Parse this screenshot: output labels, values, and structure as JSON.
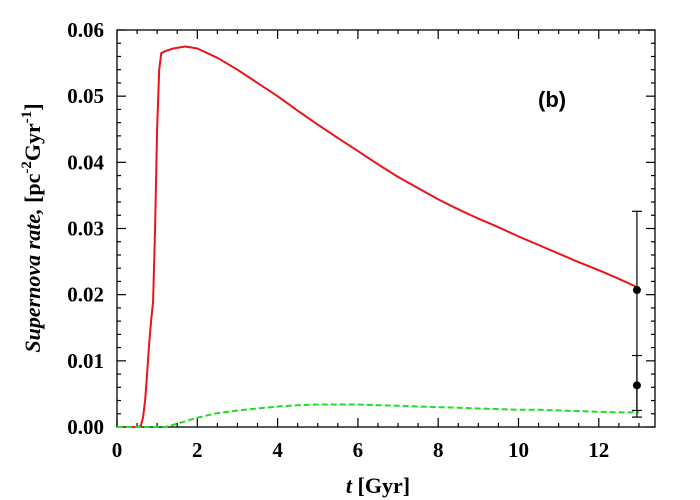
{
  "chart_data": {
    "type": "line",
    "panel_label": "(b)",
    "xlabel": {
      "italic": "t",
      "rest": " [Gyr]"
    },
    "ylabel": {
      "italic": "Supernova rate,",
      "rest": " [pc",
      "sup1": "-2",
      "mid": "Gyr",
      "sup2": "-1",
      "end": "]"
    },
    "xlim": [
      0,
      13.4
    ],
    "ylim": [
      0,
      0.06
    ],
    "xticks": [
      0,
      2,
      4,
      6,
      8,
      10,
      12
    ],
    "xtick_labels": [
      "0",
      "2",
      "4",
      "6",
      "8",
      "10",
      "12"
    ],
    "yticks": [
      0,
      0.01,
      0.02,
      0.03,
      0.04,
      0.05,
      0.06
    ],
    "ytick_labels": [
      "0.00",
      "0.01",
      "0.02",
      "0.03",
      "0.04",
      "0.05",
      "0.06"
    ],
    "grid": false,
    "series": [
      {
        "color": "#e8141a",
        "style": "solid",
        "x": [
          0,
          0.55,
          0.6,
          0.65,
          0.7,
          0.75,
          0.8,
          0.85,
          0.9,
          0.95,
          1.0,
          1.05,
          1.1,
          1.2,
          1.4,
          1.7,
          2.0,
          2.5,
          3.0,
          3.5,
          4.0,
          4.5,
          5.0,
          5.5,
          6.0,
          6.5,
          7.0,
          7.5,
          8.0,
          8.5,
          9.0,
          9.5,
          10.0,
          10.5,
          11.0,
          11.5,
          12.0,
          12.5,
          13.0
        ],
        "y": [
          0,
          0,
          0.0003,
          0.0015,
          0.004,
          0.008,
          0.0125,
          0.016,
          0.019,
          0.03,
          0.045,
          0.054,
          0.0565,
          0.0568,
          0.0572,
          0.0575,
          0.0572,
          0.0558,
          0.054,
          0.052,
          0.05,
          0.0478,
          0.0457,
          0.0437,
          0.0417,
          0.0397,
          0.0378,
          0.0361,
          0.0344,
          0.0329,
          0.0315,
          0.0302,
          0.0288,
          0.0275,
          0.0262,
          0.0249,
          0.0237,
          0.0224,
          0.021
        ]
      },
      {
        "color": "#22dd22",
        "style": "dashed",
        "x": [
          0,
          1.2,
          1.5,
          2.0,
          2.5,
          3.0,
          3.5,
          4.0,
          4.5,
          5.0,
          5.5,
          6.0,
          6.5,
          7.0,
          7.5,
          8.0,
          8.5,
          9.0,
          9.5,
          10.0,
          10.5,
          11.0,
          11.5,
          12.0,
          12.5,
          13.0
        ],
        "y": [
          0,
          0,
          0.0005,
          0.0014,
          0.0021,
          0.0025,
          0.0028,
          0.0031,
          0.0033,
          0.0034,
          0.0034,
          0.0034,
          0.0033,
          0.0032,
          0.0031,
          0.003,
          0.0029,
          0.0028,
          0.0027,
          0.0026,
          0.0026,
          0.0025,
          0.0024,
          0.0023,
          0.0022,
          0.0022
        ]
      }
    ],
    "observations": [
      {
        "x": 12.95,
        "y": 0.0207,
        "ylow": 0.0015,
        "yhigh": 0.0326
      },
      {
        "x": 12.95,
        "y": 0.0063,
        "ylow": 0.0025,
        "yhigh": 0.0108
      }
    ]
  }
}
